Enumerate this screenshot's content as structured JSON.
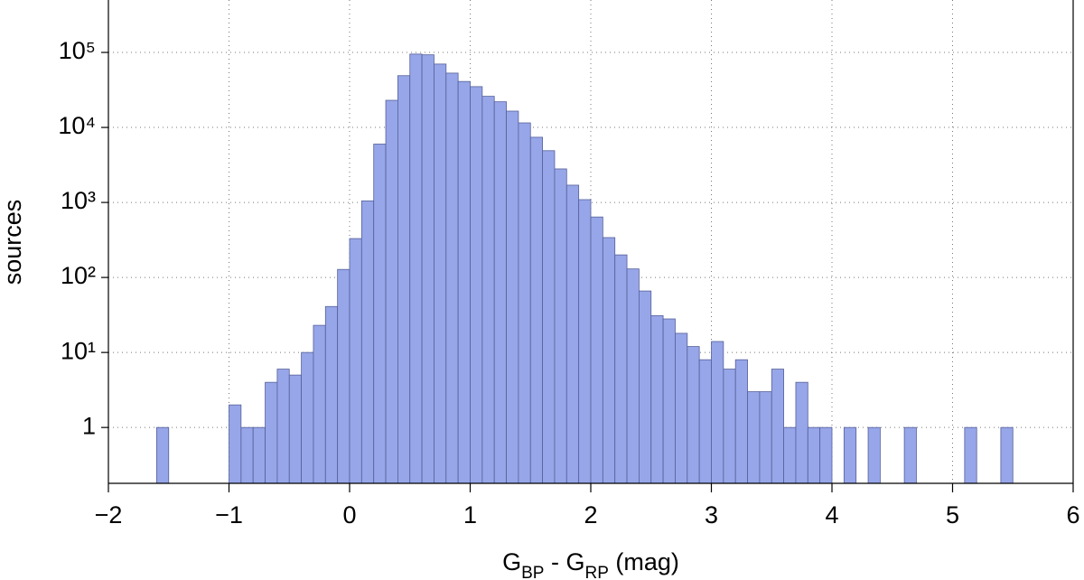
{
  "chart_data": {
    "type": "histogram",
    "y_label": "sources",
    "x_label": [
      "G",
      "BP",
      " - G",
      "RP",
      " (mag)"
    ],
    "bins": [
      -1.6,
      -1.5,
      -1.4,
      -1.3,
      -1.2,
      -1.1,
      -1.0,
      -0.9,
      -0.8,
      -0.7,
      -0.6,
      -0.5,
      -0.4,
      -0.3,
      -0.2,
      -0.1,
      0,
      0.1,
      0.2,
      0.3,
      0.4,
      0.5,
      0.6,
      0.7,
      0.8,
      0.9,
      1.0,
      1.1,
      1.2,
      1.3,
      1.4,
      1.5,
      1.6,
      1.7,
      1.8,
      1.9,
      2.0,
      2.1,
      2.2,
      2.3,
      2.4,
      2.5,
      2.6,
      2.7,
      2.8,
      2.9,
      3.0,
      3.1,
      3.2,
      3.3,
      3.4,
      3.5,
      3.6,
      3.7,
      3.8,
      3.9,
      4.0,
      4.1,
      4.2,
      4.3,
      4.4,
      4.5,
      4.6,
      4.7,
      4.8,
      4.9,
      5.0,
      5.1,
      5.2,
      5.3,
      5.4,
      5.5
    ],
    "values": [
      1,
      0,
      0,
      0,
      0,
      0,
      2,
      1,
      1,
      4,
      6,
      5,
      10,
      23,
      41,
      128,
      330,
      1050,
      6000,
      23000,
      49000,
      95000,
      93000,
      70000,
      53000,
      41000,
      35000,
      26000,
      22000,
      16500,
      11500,
      7400,
      4900,
      2800,
      1700,
      1090,
      640,
      340,
      200,
      130,
      66,
      31,
      28,
      18,
      12,
      8,
      14,
      6,
      8,
      3,
      3,
      6,
      1,
      4,
      1,
      1,
      0,
      1,
      0,
      1,
      0,
      0,
      1,
      0,
      0,
      0,
      0,
      1,
      0,
      0,
      1
    ],
    "color": "#97a6e8",
    "edge_color": "#55609a",
    "xlim": [
      -2,
      6
    ],
    "xticks": [
      {
        "value": -2,
        "label": "−2"
      },
      {
        "value": -1,
        "label": "−1"
      },
      0,
      1,
      2,
      3,
      4,
      5,
      6
    ],
    "ylim": [
      0.18,
      500000
    ],
    "yticks": [
      1,
      {
        "value": 10,
        "label": "10¹"
      },
      {
        "value": 100,
        "label": "10²"
      },
      {
        "value": 1000,
        "label": "10³"
      },
      {
        "value": 10000,
        "label": "10⁴"
      },
      {
        "value": 100000,
        "label": "10⁵"
      }
    ],
    "log_y": true,
    "grid": true
  }
}
